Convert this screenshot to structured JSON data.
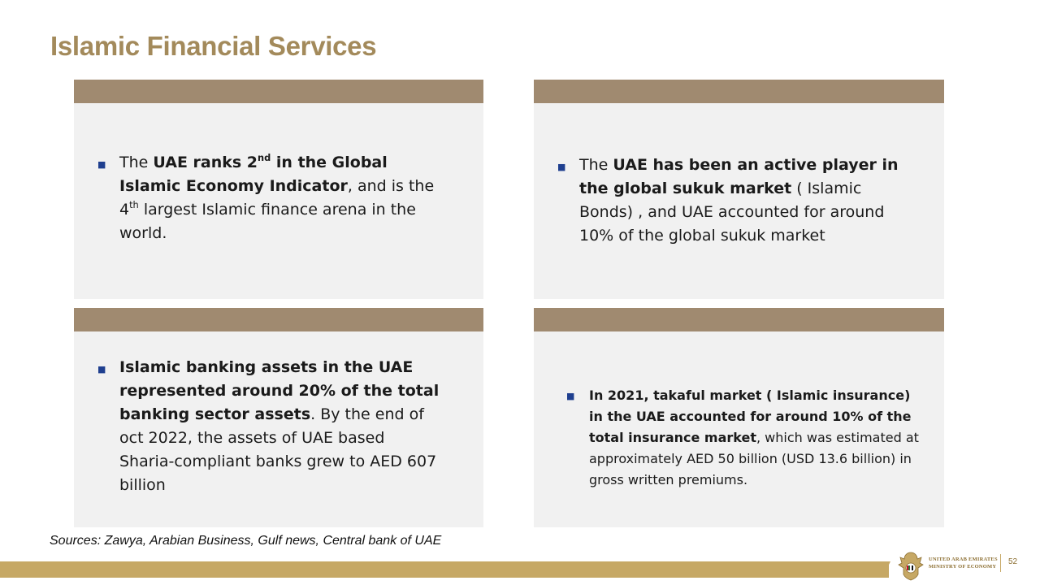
{
  "title": "Islamic Financial Services",
  "cards": [
    {
      "parts": [
        {
          "t": "The ",
          "b": false
        },
        {
          "t": "UAE ranks 2",
          "b": true
        },
        {
          "t": "nd",
          "b": true,
          "sup": true
        },
        {
          "t": " in the Global Islamic Economy Indicator",
          "b": true
        },
        {
          "t": ", and is the 4",
          "b": false
        },
        {
          "t": "th",
          "b": false,
          "sup": true
        },
        {
          "t": " largest Islamic finance arena in the world.",
          "b": false
        }
      ]
    },
    {
      "parts": [
        {
          "t": "The ",
          "b": false
        },
        {
          "t": "UAE has been an active player in the global sukuk market",
          "b": true
        },
        {
          "t": " ( Islamic Bonds) , and UAE accounted for around 10% of the global sukuk market",
          "b": false
        }
      ]
    },
    {
      "parts": [
        {
          "t": "Islamic banking assets in the UAE represented around 20% of the total banking sector assets",
          "b": true
        },
        {
          "t": ". By the end of oct 2022, the assets of UAE based Sharia-compliant banks grew to AED 607 billion",
          "b": false
        }
      ]
    },
    {
      "parts": [
        {
          "t": "In 2021,  takaful  market ( Islamic insurance) in the UAE accounted for around 10% of the total insurance market",
          "b": true
        },
        {
          "t": ", which was estimated at approximately AED 50 billion (USD 13.6 billion) in gross written premiums.",
          "b": false
        }
      ]
    }
  ],
  "sources": "Sources:  Zawya, Arabian Business, Gulf news, Central bank of UAE",
  "footer": {
    "ministry_line1": "UNITED ARAB EMIRATES",
    "ministry_line2": "MINISTRY OF ECONOMY",
    "page_number": "52"
  },
  "colors": {
    "title": "#a38a5b",
    "card_bar": "#a08a70",
    "card_bg": "#f1f1f1",
    "bullet": "#1f3f8f",
    "footer_band": "#c6a865"
  },
  "icons": {
    "bullet": "square-bullet-icon",
    "emblem": "uae-emblem-icon"
  }
}
